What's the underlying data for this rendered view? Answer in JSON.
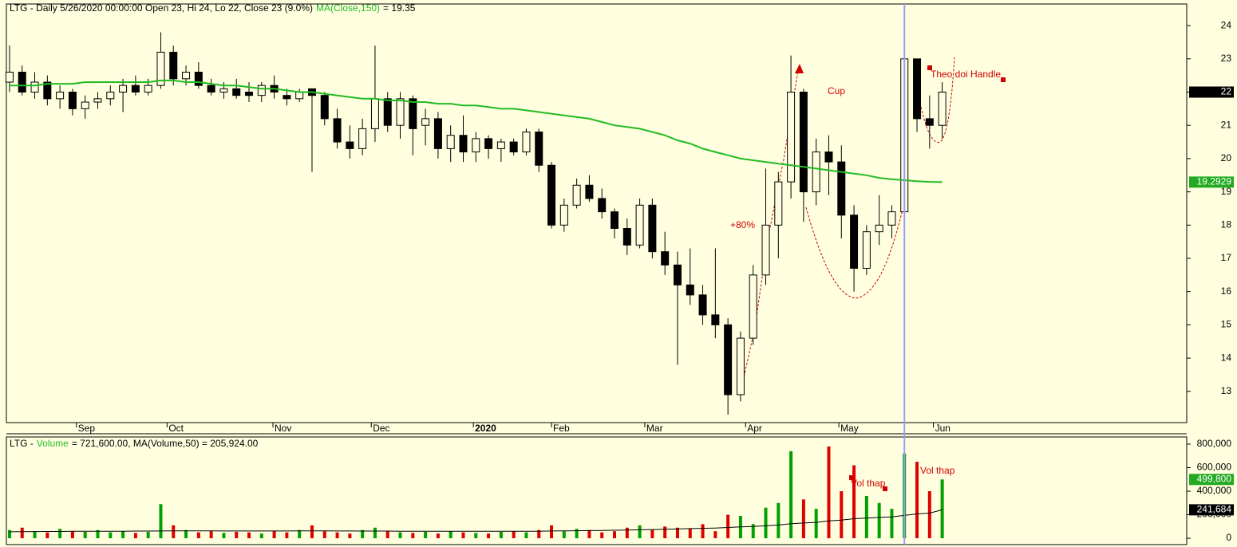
{
  "chart_data": [
    {
      "type": "candlestick",
      "title": "LTG - Daily 5/26/2020 00:00:00 Open 23, Hi 24, Lo 22, Close 23 (9.0%)",
      "ma": {
        "name": "MA(Close,150)",
        "color": "#22bb22",
        "values": [
          22.2,
          22.2,
          22.2,
          22.25,
          22.25,
          22.25,
          22.3,
          22.3,
          22.3,
          22.3,
          22.3,
          22.3,
          22.35,
          22.35,
          22.3,
          22.3,
          22.25,
          22.2,
          22.2,
          22.15,
          22.1,
          22.1,
          22.05,
          22.0,
          22.0,
          21.95,
          21.9,
          21.85,
          21.8,
          21.8,
          21.75,
          21.75,
          21.7,
          21.7,
          21.65,
          21.65,
          21.6,
          21.6,
          21.55,
          21.5,
          21.5,
          21.45,
          21.4,
          21.35,
          21.3,
          21.25,
          21.2,
          21.1,
          21.0,
          20.95,
          20.9,
          20.8,
          20.7,
          20.55,
          20.45,
          20.3,
          20.2,
          20.1,
          20.0,
          19.95,
          19.9,
          19.85,
          19.8,
          19.75,
          19.7,
          19.65,
          19.6,
          19.55,
          19.5,
          19.42,
          19.38,
          19.35,
          19.32,
          19.3,
          19.2929
        ]
      },
      "title_suffix": "= 19.35",
      "open": [
        22.3,
        22.6,
        22.0,
        22.3,
        21.8,
        22.0,
        21.5,
        21.7,
        21.8,
        22.0,
        22.2,
        22.0,
        22.2,
        23.2,
        22.4,
        22.6,
        22.2,
        22.0,
        22.1,
        22.0,
        21.9,
        22.2,
        21.9,
        21.8,
        22.1,
        21.9,
        21.2,
        20.5,
        20.3,
        20.9,
        21.8,
        21.0,
        21.8,
        21.0,
        21.2,
        20.3,
        20.7,
        20.2,
        20.6,
        20.3,
        20.5,
        20.2,
        20.8,
        19.8,
        18.0,
        18.6,
        19.2,
        18.8,
        18.4,
        17.9,
        17.4,
        18.6,
        17.2,
        16.8,
        16.2,
        15.9,
        15.3,
        15.0,
        12.9,
        14.6,
        16.5,
        18.0,
        19.3,
        22.0,
        19.0,
        20.2,
        19.9,
        18.3,
        16.7,
        17.8,
        18.0,
        18.4,
        23.0,
        21.2,
        21.0
      ],
      "high": [
        23.4,
        22.8,
        22.6,
        22.5,
        22.2,
        22.1,
        21.9,
        22.0,
        22.2,
        22.4,
        22.5,
        22.4,
        23.8,
        23.4,
        22.8,
        22.9,
        22.4,
        22.3,
        22.4,
        22.3,
        22.3,
        22.5,
        22.1,
        22.1,
        22.1,
        22.0,
        21.5,
        21.0,
        21.2,
        23.4,
        22.0,
        22.0,
        21.9,
        21.5,
        21.4,
        21.0,
        21.3,
        20.8,
        20.7,
        20.6,
        20.6,
        20.9,
        20.9,
        19.9,
        18.8,
        19.4,
        19.5,
        19.1,
        18.5,
        18.2,
        18.8,
        18.8,
        17.8,
        17.2,
        17.3,
        16.2,
        17.3,
        15.2,
        14.8,
        16.8,
        19.7,
        19.6,
        23.1,
        22.1,
        20.6,
        20.7,
        20.4,
        18.6,
        18.0,
        18.9,
        18.6,
        24.0,
        23.0,
        21.9,
        22.3
      ],
      "low": [
        22.0,
        21.9,
        21.8,
        21.6,
        21.5,
        21.3,
        21.2,
        21.5,
        21.6,
        21.4,
        21.9,
        21.9,
        22.1,
        22.2,
        22.2,
        22.1,
        21.9,
        21.8,
        21.8,
        21.7,
        21.7,
        21.8,
        21.6,
        21.7,
        19.6,
        21.0,
        20.3,
        20.0,
        20.1,
        20.5,
        20.8,
        20.6,
        20.1,
        20.4,
        20.0,
        19.9,
        19.9,
        19.9,
        20.0,
        19.9,
        20.1,
        20.1,
        19.6,
        17.9,
        17.8,
        18.5,
        18.7,
        18.2,
        17.6,
        17.1,
        17.3,
        17.0,
        16.5,
        13.8,
        15.6,
        15.0,
        14.6,
        12.3,
        12.7,
        14.4,
        16.2,
        17.0,
        18.8,
        18.1,
        18.6,
        18.9,
        17.6,
        16.0,
        16.5,
        17.4,
        17.6,
        18.2,
        20.8,
        20.3,
        20.6
      ],
      "close": [
        22.6,
        22.0,
        22.3,
        21.8,
        22.0,
        21.5,
        21.7,
        21.8,
        22.0,
        22.2,
        22.0,
        22.2,
        23.2,
        22.4,
        22.6,
        22.2,
        22.0,
        22.1,
        21.9,
        21.9,
        22.2,
        22.0,
        21.8,
        22.0,
        21.9,
        21.2,
        20.5,
        20.3,
        20.9,
        21.8,
        21.0,
        21.8,
        20.9,
        21.2,
        20.3,
        20.7,
        20.2,
        20.6,
        20.3,
        20.5,
        20.2,
        20.8,
        19.8,
        18.0,
        18.6,
        19.2,
        18.8,
        18.4,
        17.9,
        17.4,
        18.6,
        17.2,
        16.8,
        16.2,
        15.9,
        15.3,
        15.0,
        12.9,
        14.6,
        16.5,
        18.0,
        19.3,
        22.0,
        19.0,
        20.2,
        19.9,
        18.3,
        16.7,
        17.8,
        18.0,
        18.4,
        23.0,
        21.2,
        21.0,
        22.0
      ],
      "up_color": "#fffde0",
      "down_color": "#000000",
      "xlim": [
        -0.25,
        93.4
      ],
      "xticks": [
        {
          "value": 5.3,
          "label": "Sep"
        },
        {
          "value": 12.5,
          "label": "Oct"
        },
        {
          "value": 20.9,
          "label": "Nov"
        },
        {
          "value": 28.7,
          "label": "Dec"
        },
        {
          "value": 36.8,
          "label": "2020"
        },
        {
          "value": 43.0,
          "label": "Feb"
        },
        {
          "value": 50.4,
          "label": "Mar"
        },
        {
          "value": 58.4,
          "label": "Apr"
        },
        {
          "value": 65.8,
          "label": "May"
        },
        {
          "value": 73.3,
          "label": "Jun"
        }
      ],
      "ylim": [
        12.06,
        24.65
      ],
      "yticks": [
        13,
        14,
        15,
        16,
        17,
        18,
        19,
        20,
        21,
        22,
        23,
        24
      ],
      "cursor": 71,
      "last_badge": 22,
      "ma_badge": 19.2929,
      "annotations": [
        "+80%",
        "Cup",
        "Theo doi Handle"
      ]
    },
    {
      "type": "bar",
      "title_prefix": "LTG -",
      "series_name": "Volume",
      "title_suffix": "= 721,600.00, MA(Volume,50) = 205,924.00",
      "values": [
        70000,
        90000,
        60000,
        50000,
        80000,
        60000,
        55000,
        70000,
        50000,
        60000,
        45000,
        55000,
        290000,
        110000,
        70000,
        50000,
        60000,
        45000,
        55000,
        50000,
        40000,
        60000,
        50000,
        70000,
        110000,
        60000,
        50000,
        40000,
        70000,
        90000,
        60000,
        50000,
        45000,
        55000,
        40000,
        60000,
        50000,
        45000,
        40000,
        55000,
        60000,
        50000,
        70000,
        110000,
        60000,
        80000,
        70000,
        50000,
        60000,
        90000,
        110000,
        70000,
        100000,
        90000,
        80000,
        120000,
        60000,
        200000,
        190000,
        120000,
        260000,
        300000,
        740000,
        330000,
        250000,
        780000,
        400000,
        620000,
        360000,
        300000,
        250000,
        720000,
        650000,
        400000,
        499800
      ],
      "up_color": "#00a000",
      "down_color": "#e00000",
      "ma": {
        "color": "#000000",
        "values": [
          55000,
          56000,
          57000,
          58000,
          58000,
          59000,
          59000,
          60000,
          60000,
          60000,
          61000,
          61000,
          62000,
          63000,
          63000,
          63000,
          63000,
          62000,
          62000,
          62000,
          62000,
          62000,
          62000,
          63000,
          63000,
          63000,
          62000,
          62000,
          61000,
          61000,
          61000,
          60000,
          60000,
          60000,
          60000,
          60000,
          59000,
          59000,
          59000,
          59000,
          60000,
          60000,
          60000,
          62000,
          63000,
          64000,
          65000,
          66000,
          68000,
          70000,
          72000,
          74000,
          76000,
          79000,
          82000,
          84000,
          87000,
          92000,
          97000,
          100000,
          106000,
          112000,
          124000,
          130000,
          135000,
          148000,
          155000,
          166000,
          172000,
          177000,
          181000,
          194000,
          207000,
          214000,
          241684
        ]
      },
      "ylim": [
        -54000,
        861000
      ],
      "yticks": [
        0,
        {
          "value": 200000,
          "label": "200,000"
        },
        {
          "value": 400000,
          "label": "400,000"
        },
        {
          "value": 600000,
          "label": "600,000"
        },
        {
          "value": 800000,
          "label": "800,000"
        }
      ],
      "last_badge": {
        "value": 499800,
        "label": "499,800"
      },
      "ma_badge": {
        "value": 241684,
        "label": "241,684"
      },
      "annotations": [
        "Vol thap",
        "Vol thap"
      ]
    }
  ]
}
